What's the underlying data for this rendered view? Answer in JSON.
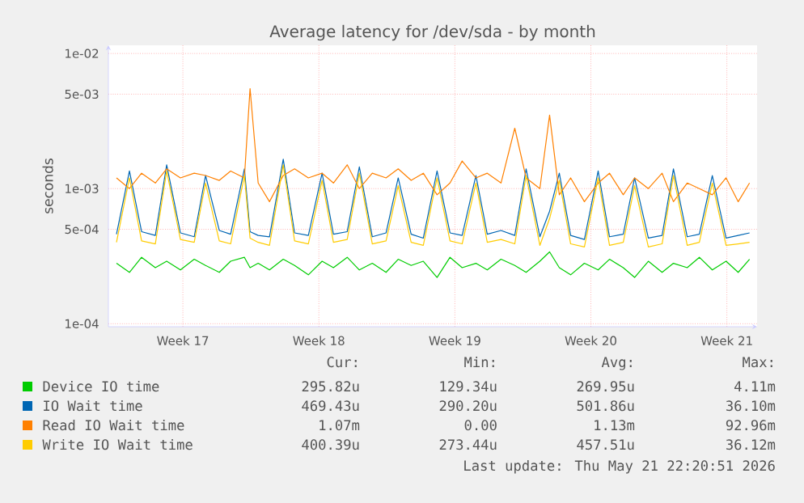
{
  "chart_data": {
    "type": "line",
    "title": "Average latency for /dev/sda - by month",
    "ylabel": "seconds",
    "log": "y",
    "grid": true,
    "legend": "bottom",
    "xlim": [
      "2026-04-18T13:00",
      "2026-05-21T22:20"
    ],
    "ylim": [
      9.5e-05,
      0.0115
    ],
    "xticks": [
      {
        "value": "2026-04-22T09:00",
        "label": "Week 17"
      },
      {
        "value": "2026-04-29T09:00",
        "label": "Week 18"
      },
      {
        "value": "2026-05-06T09:00",
        "label": "Week 19"
      },
      {
        "value": "2026-05-13T09:00",
        "label": "Week 20"
      },
      {
        "value": "2026-05-20T09:00",
        "label": "Week 21"
      }
    ],
    "yticks": [
      {
        "value": 0.0001,
        "label": "1e-04"
      },
      {
        "value": 0.0005,
        "label": "5e-04"
      },
      {
        "value": 0.001,
        "label": "1e-03"
      },
      {
        "value": 0.005,
        "label": "5e-03"
      },
      {
        "value": 0.01,
        "label": "1e-02"
      }
    ],
    "x": [
      "2026-04-18T23:00",
      "2026-04-19T15:00",
      "2026-04-20T06:00",
      "2026-04-20T23:00",
      "2026-04-21T13:00",
      "2026-04-22T06:00",
      "2026-04-22T23:00",
      "2026-04-23T13:00",
      "2026-04-24T06:00",
      "2026-04-24T20:00",
      "2026-04-25T13:00",
      "2026-04-25T20:00",
      "2026-04-26T06:00",
      "2026-04-26T20:00",
      "2026-04-27T13:00",
      "2026-04-28T03:00",
      "2026-04-28T20:00",
      "2026-04-29T13:00",
      "2026-04-30T03:00",
      "2026-04-30T20:00",
      "2026-05-01T11:00",
      "2026-05-02T03:00",
      "2026-05-02T20:00",
      "2026-05-03T11:00",
      "2026-05-04T03:00",
      "2026-05-04T18:00",
      "2026-05-05T11:00",
      "2026-05-06T03:00",
      "2026-05-06T18:00",
      "2026-05-07T11:00",
      "2026-05-08T01:00",
      "2026-05-08T18:00",
      "2026-05-09T11:00",
      "2026-05-10T01:00",
      "2026-05-10T18:00",
      "2026-05-11T06:00",
      "2026-05-11T18:00",
      "2026-05-12T08:00",
      "2026-05-13T01:00",
      "2026-05-13T18:00",
      "2026-05-14T08:00",
      "2026-05-15T01:00",
      "2026-05-15T15:00",
      "2026-05-16T08:00",
      "2026-05-17T01:00",
      "2026-05-17T15:00",
      "2026-05-18T08:00",
      "2026-05-18T23:00",
      "2026-05-19T15:00",
      "2026-05-20T08:00",
      "2026-05-20T23:00",
      "2026-05-21T13:00"
    ],
    "series": [
      {
        "name": "Device IO time",
        "color": "#00cc00",
        "values": [
          0.00028,
          0.00024,
          0.00031,
          0.00026,
          0.00029,
          0.00025,
          0.0003,
          0.00027,
          0.00024,
          0.00029,
          0.00031,
          0.00026,
          0.00028,
          0.00025,
          0.0003,
          0.00027,
          0.00023,
          0.00029,
          0.00026,
          0.00031,
          0.00025,
          0.00028,
          0.00024,
          0.0003,
          0.00027,
          0.00029,
          0.00022,
          0.00031,
          0.00026,
          0.00028,
          0.00025,
          0.0003,
          0.00027,
          0.00024,
          0.00029,
          0.00034,
          0.00026,
          0.00023,
          0.00028,
          0.00025,
          0.0003,
          0.00026,
          0.00022,
          0.00029,
          0.00024,
          0.00028,
          0.00026,
          0.00031,
          0.00025,
          0.00029,
          0.00024,
          0.0003
        ]
      },
      {
        "name": "IO Wait time",
        "color": "#0066b3",
        "values": [
          0.00046,
          0.00135,
          0.00048,
          0.00045,
          0.0015,
          0.00047,
          0.00044,
          0.00125,
          0.00049,
          0.00046,
          0.0014,
          0.00048,
          0.00045,
          0.00044,
          0.00165,
          0.00047,
          0.00045,
          0.0013,
          0.00046,
          0.00048,
          0.00145,
          0.00044,
          0.00047,
          0.0012,
          0.00046,
          0.00043,
          0.00135,
          0.00047,
          0.00045,
          0.00125,
          0.00046,
          0.00049,
          0.00045,
          0.0014,
          0.00044,
          0.00068,
          0.0013,
          0.00045,
          0.00042,
          0.00135,
          0.00044,
          0.00046,
          0.0012,
          0.00043,
          0.00045,
          0.0014,
          0.00044,
          0.00046,
          0.00125,
          0.00043,
          0.00045,
          0.00047
        ]
      },
      {
        "name": "Read IO Wait time",
        "color": "#ff8000",
        "values": [
          0.0012,
          0.001,
          0.0013,
          0.0011,
          0.0014,
          0.0012,
          0.0013,
          0.00125,
          0.00115,
          0.00135,
          0.0012,
          0.0055,
          0.0011,
          0.0008,
          0.00125,
          0.0014,
          0.0012,
          0.0013,
          0.0011,
          0.0015,
          0.001,
          0.0013,
          0.0012,
          0.0014,
          0.00115,
          0.0013,
          0.0009,
          0.0011,
          0.0016,
          0.0012,
          0.0013,
          0.0011,
          0.0028,
          0.0012,
          0.001,
          0.0035,
          0.0009,
          0.0012,
          0.0008,
          0.0011,
          0.0013,
          0.0009,
          0.0012,
          0.001,
          0.0013,
          0.0008,
          0.0011,
          0.001,
          0.0009,
          0.0012,
          0.0008,
          0.0011
        ]
      },
      {
        "name": "Write IO Wait time",
        "color": "#ffcc00",
        "values": [
          0.0004,
          0.0012,
          0.00041,
          0.00039,
          0.00135,
          0.00042,
          0.0004,
          0.0011,
          0.00041,
          0.00039,
          0.00125,
          0.00043,
          0.0004,
          0.00038,
          0.0015,
          0.00041,
          0.00039,
          0.00115,
          0.0004,
          0.00042,
          0.0013,
          0.00039,
          0.00041,
          0.00105,
          0.0004,
          0.00038,
          0.0012,
          0.00041,
          0.00039,
          0.0011,
          0.0004,
          0.00042,
          0.00039,
          0.00125,
          0.00038,
          0.0006,
          0.00115,
          0.00039,
          0.00037,
          0.0012,
          0.00038,
          0.0004,
          0.00105,
          0.00037,
          0.00039,
          0.00125,
          0.00038,
          0.0004,
          0.0011,
          0.00038,
          0.00039,
          0.0004
        ]
      }
    ],
    "annotations": [
      "Cur:",
      "Min:",
      "Avg:",
      "Max:",
      "295.82u",
      "129.34u",
      "269.95u",
      "4.11m",
      "469.43u",
      "290.20u",
      "501.86u",
      "36.10m",
      "1.07m",
      "0.00",
      "1.13m",
      "92.96m",
      "400.39u",
      "273.44u",
      "457.51u",
      "36.12m",
      "Last update: Thu May 21 22:20:51 2026"
    ]
  }
}
